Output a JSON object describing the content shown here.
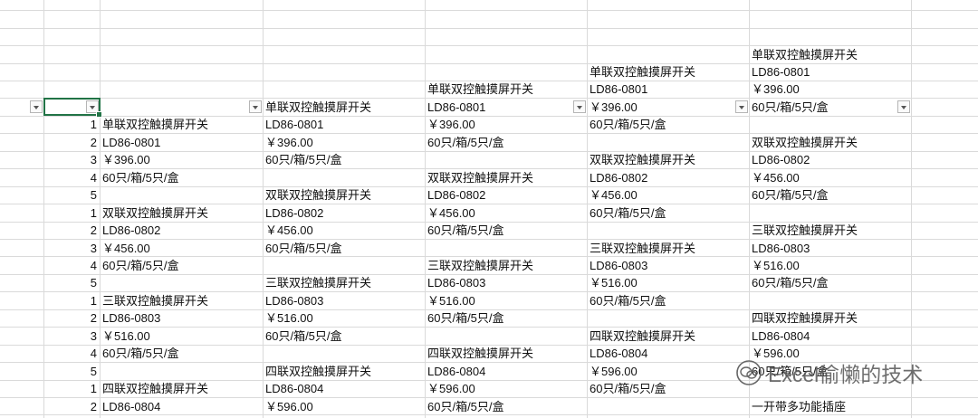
{
  "sheet": {
    "rows": [
      [
        null,
        null,
        null,
        null,
        null,
        null,
        "单联双控触摸屏开关"
      ],
      [
        null,
        null,
        null,
        null,
        null,
        "单联双控触摸屏开关",
        "LD86-0801"
      ],
      [
        null,
        null,
        null,
        null,
        "单联双控触摸屏开关",
        "LD86-0801",
        "￥396.00"
      ],
      [
        null,
        null,
        null,
        "单联双控触摸屏开关",
        "LD86-0801",
        "￥396.00",
        "60只/箱/5只/盒"
      ],
      [
        null,
        1,
        "单联双控触摸屏开关",
        "LD86-0801",
        "￥396.00",
        "60只/箱/5只/盒",
        null
      ],
      [
        null,
        2,
        "LD86-0801",
        "￥396.00",
        "60只/箱/5只/盒",
        null,
        "双联双控触摸屏开关"
      ],
      [
        null,
        3,
        "￥396.00",
        "60只/箱/5只/盒",
        null,
        "双联双控触摸屏开关",
        "LD86-0802"
      ],
      [
        null,
        4,
        "60只/箱/5只/盒",
        null,
        "双联双控触摸屏开关",
        "LD86-0802",
        "￥456.00"
      ],
      [
        null,
        5,
        null,
        "双联双控触摸屏开关",
        "LD86-0802",
        "￥456.00",
        "60只/箱/5只/盒"
      ],
      [
        null,
        1,
        "双联双控触摸屏开关",
        "LD86-0802",
        "￥456.00",
        "60只/箱/5只/盒",
        null
      ],
      [
        null,
        2,
        "LD86-0802",
        "￥456.00",
        "60只/箱/5只/盒",
        null,
        "三联双控触摸屏开关"
      ],
      [
        null,
        3,
        "￥456.00",
        "60只/箱/5只/盒",
        null,
        "三联双控触摸屏开关",
        "LD86-0803"
      ],
      [
        null,
        4,
        "60只/箱/5只/盒",
        null,
        "三联双控触摸屏开关",
        "LD86-0803",
        "￥516.00"
      ],
      [
        null,
        5,
        null,
        "三联双控触摸屏开关",
        "LD86-0803",
        "￥516.00",
        "60只/箱/5只/盒"
      ],
      [
        null,
        1,
        "三联双控触摸屏开关",
        "LD86-0803",
        "￥516.00",
        "60只/箱/5只/盒",
        null
      ],
      [
        null,
        2,
        "LD86-0803",
        "￥516.00",
        "60只/箱/5只/盒",
        null,
        "四联双控触摸屏开关"
      ],
      [
        null,
        3,
        "￥516.00",
        "60只/箱/5只/盒",
        null,
        "四联双控触摸屏开关",
        "LD86-0804"
      ],
      [
        null,
        4,
        "60只/箱/5只/盒",
        null,
        "四联双控触摸屏开关",
        "LD86-0804",
        "￥596.00"
      ],
      [
        null,
        5,
        null,
        "四联双控触摸屏开关",
        "LD86-0804",
        "￥596.00",
        "60只/箱/5只/盒"
      ],
      [
        null,
        1,
        "四联双控触摸屏开关",
        "LD86-0804",
        "￥596.00",
        "60只/箱/5只/盒",
        null
      ],
      [
        null,
        2,
        "LD86-0804",
        "￥596.00",
        "60只/箱/5只/盒",
        null,
        "一开带多功能插座"
      ]
    ],
    "watermark": "Excel偷懒的技术"
  }
}
